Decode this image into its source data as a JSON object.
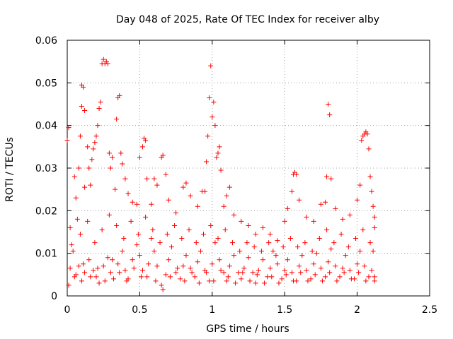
{
  "chart_data": {
    "type": "scatter",
    "title": "Day 048 of 2025, Rate Of TEC Index for receiver alby",
    "xlabel": "GPS time / hours",
    "ylabel": "ROTI / TECUs",
    "xlim": [
      0,
      2.5
    ],
    "ylim": [
      0,
      0.06
    ],
    "xticks": [
      0,
      0.5,
      1,
      1.5,
      2,
      2.5
    ],
    "xtick_labels": [
      "0",
      "0.5",
      "1",
      "1.5",
      "2",
      "2.5"
    ],
    "yticks": [
      0,
      0.01,
      0.02,
      0.03,
      0.04,
      0.05,
      0.06
    ],
    "ytick_labels": [
      "0",
      "0.01",
      "0.02",
      "0.03",
      "0.04",
      "0.05",
      "0.06"
    ],
    "grid": true,
    "marker": "+",
    "color": "#ff0000",
    "series": [
      {
        "name": "ROTI",
        "points": [
          [
            0.0,
            0.0365
          ],
          [
            0.01,
            0.0395
          ],
          [
            0.02,
            0.016
          ],
          [
            0.03,
            0.012
          ],
          [
            0.05,
            0.028
          ],
          [
            0.06,
            0.023
          ],
          [
            0.07,
            0.018
          ],
          [
            0.08,
            0.03
          ],
          [
            0.09,
            0.0375
          ],
          [
            0.1,
            0.0445
          ],
          [
            0.1,
            0.0495
          ],
          [
            0.11,
            0.049
          ],
          [
            0.12,
            0.0435
          ],
          [
            0.12,
            0.0255
          ],
          [
            0.14,
            0.035
          ],
          [
            0.15,
            0.03
          ],
          [
            0.16,
            0.026
          ],
          [
            0.17,
            0.032
          ],
          [
            0.18,
            0.0345
          ],
          [
            0.19,
            0.036
          ],
          [
            0.2,
            0.0375
          ],
          [
            0.21,
            0.04
          ],
          [
            0.22,
            0.044
          ],
          [
            0.23,
            0.0455
          ],
          [
            0.24,
            0.0545
          ],
          [
            0.25,
            0.0555
          ],
          [
            0.26,
            0.0545
          ],
          [
            0.27,
            0.055
          ],
          [
            0.28,
            0.0545
          ],
          [
            0.29,
            0.0335
          ],
          [
            0.3,
            0.03
          ],
          [
            0.31,
            0.0325
          ],
          [
            0.33,
            0.025
          ],
          [
            0.34,
            0.0415
          ],
          [
            0.35,
            0.0465
          ],
          [
            0.36,
            0.047
          ],
          [
            0.37,
            0.0335
          ],
          [
            0.38,
            0.031
          ],
          [
            0.4,
            0.0275
          ],
          [
            0.42,
            0.024
          ],
          [
            0.45,
            0.022
          ],
          [
            0.48,
            0.0215
          ],
          [
            0.5,
            0.0325
          ],
          [
            0.52,
            0.035
          ],
          [
            0.53,
            0.037
          ],
          [
            0.54,
            0.0365
          ],
          [
            0.55,
            0.0275
          ],
          [
            0.58,
            0.0215
          ],
          [
            0.6,
            0.0275
          ],
          [
            0.62,
            0.026
          ],
          [
            0.65,
            0.0325
          ],
          [
            0.66,
            0.033
          ],
          [
            0.68,
            0.0285
          ],
          [
            0.7,
            0.0225
          ],
          [
            0.75,
            0.0195
          ],
          [
            0.8,
            0.0255
          ],
          [
            0.82,
            0.0265
          ],
          [
            0.85,
            0.0235
          ],
          [
            0.9,
            0.021
          ],
          [
            0.93,
            0.0245
          ],
          [
            0.95,
            0.0245
          ],
          [
            0.96,
            0.0315
          ],
          [
            0.97,
            0.0375
          ],
          [
            0.98,
            0.0465
          ],
          [
            0.99,
            0.054
          ],
          [
            1.0,
            0.042
          ],
          [
            1.01,
            0.0455
          ],
          [
            1.02,
            0.04
          ],
          [
            1.03,
            0.0325
          ],
          [
            1.04,
            0.0335
          ],
          [
            1.05,
            0.035
          ],
          [
            1.06,
            0.0295
          ],
          [
            1.08,
            0.021
          ],
          [
            1.1,
            0.0235
          ],
          [
            1.12,
            0.0255
          ],
          [
            1.15,
            0.019
          ],
          [
            1.2,
            0.0175
          ],
          [
            1.25,
            0.0165
          ],
          [
            1.3,
            0.0145
          ],
          [
            1.35,
            0.016
          ],
          [
            1.4,
            0.0145
          ],
          [
            1.45,
            0.013
          ],
          [
            1.5,
            0.0175
          ],
          [
            1.52,
            0.0205
          ],
          [
            1.55,
            0.0245
          ],
          [
            1.56,
            0.0285
          ],
          [
            1.57,
            0.029
          ],
          [
            1.58,
            0.0285
          ],
          [
            1.6,
            0.0225
          ],
          [
            1.65,
            0.0185
          ],
          [
            1.7,
            0.0175
          ],
          [
            1.75,
            0.0215
          ],
          [
            1.78,
            0.022
          ],
          [
            1.79,
            0.028
          ],
          [
            1.8,
            0.045
          ],
          [
            1.81,
            0.0425
          ],
          [
            1.82,
            0.0275
          ],
          [
            1.85,
            0.0205
          ],
          [
            1.9,
            0.018
          ],
          [
            1.95,
            0.019
          ],
          [
            2.0,
            0.0225
          ],
          [
            2.02,
            0.026
          ],
          [
            2.03,
            0.0365
          ],
          [
            2.04,
            0.0375
          ],
          [
            2.05,
            0.038
          ],
          [
            2.06,
            0.0385
          ],
          [
            2.07,
            0.038
          ],
          [
            2.08,
            0.0345
          ],
          [
            2.09,
            0.028
          ],
          [
            2.1,
            0.0245
          ],
          [
            2.11,
            0.021
          ],
          [
            2.12,
            0.0185
          ],
          [
            2.12,
            0.016
          ],
          [
            0.02,
            0.0065
          ],
          [
            0.05,
            0.0045
          ],
          [
            0.08,
            0.007
          ],
          [
            0.1,
            0.0035
          ],
          [
            0.12,
            0.0055
          ],
          [
            0.15,
            0.0085
          ],
          [
            0.18,
            0.006
          ],
          [
            0.2,
            0.0045
          ],
          [
            0.22,
            0.003
          ],
          [
            0.25,
            0.007
          ],
          [
            0.28,
            0.009
          ],
          [
            0.3,
            0.0055
          ],
          [
            0.32,
            0.004
          ],
          [
            0.35,
            0.0075
          ],
          [
            0.38,
            0.0105
          ],
          [
            0.4,
            0.006
          ],
          [
            0.42,
            0.004
          ],
          [
            0.45,
            0.0085
          ],
          [
            0.48,
            0.012
          ],
          [
            0.5,
            0.0095
          ],
          [
            0.52,
            0.006
          ],
          [
            0.55,
            0.0045
          ],
          [
            0.58,
            0.0135
          ],
          [
            0.6,
            0.0105
          ],
          [
            0.62,
            0.007
          ],
          [
            0.65,
            0.0025
          ],
          [
            0.68,
            0.005
          ],
          [
            0.7,
            0.0085
          ],
          [
            0.72,
            0.0115
          ],
          [
            0.75,
            0.0055
          ],
          [
            0.78,
            0.004
          ],
          [
            0.8,
            0.007
          ],
          [
            0.82,
            0.0095
          ],
          [
            0.85,
            0.0065
          ],
          [
            0.88,
            0.0045
          ],
          [
            0.9,
            0.008
          ],
          [
            0.92,
            0.0105
          ],
          [
            0.95,
            0.006
          ],
          [
            0.98,
            0.0035
          ],
          [
            1.0,
            0.0075
          ],
          [
            1.02,
            0.0125
          ],
          [
            1.05,
            0.0085
          ],
          [
            1.08,
            0.0055
          ],
          [
            1.1,
            0.0035
          ],
          [
            1.12,
            0.007
          ],
          [
            1.15,
            0.0095
          ],
          [
            1.18,
            0.0055
          ],
          [
            1.2,
            0.004
          ],
          [
            1.22,
            0.0065
          ],
          [
            1.25,
            0.009
          ],
          [
            1.28,
            0.0055
          ],
          [
            1.3,
            0.003
          ],
          [
            1.32,
            0.006
          ],
          [
            1.35,
            0.0085
          ],
          [
            1.38,
            0.0045
          ],
          [
            1.4,
            0.0065
          ],
          [
            1.42,
            0.0105
          ],
          [
            1.45,
            0.0075
          ],
          [
            1.48,
            0.004
          ],
          [
            1.5,
            0.006
          ],
          [
            1.52,
            0.0085
          ],
          [
            1.55,
            0.0055
          ],
          [
            1.58,
            0.0035
          ],
          [
            1.6,
            0.007
          ],
          [
            1.62,
            0.0095
          ],
          [
            1.65,
            0.006
          ],
          [
            1.68,
            0.004
          ],
          [
            1.7,
            0.0075
          ],
          [
            1.72,
            0.01
          ],
          [
            1.75,
            0.0065
          ],
          [
            1.78,
            0.0045
          ],
          [
            1.8,
            0.008
          ],
          [
            1.82,
            0.011
          ],
          [
            1.85,
            0.007
          ],
          [
            1.88,
            0.0045
          ],
          [
            1.9,
            0.0065
          ],
          [
            1.92,
            0.0095
          ],
          [
            1.95,
            0.006
          ],
          [
            1.98,
            0.004
          ],
          [
            2.0,
            0.0075
          ],
          [
            2.02,
            0.0105
          ],
          [
            2.05,
            0.007
          ],
          [
            2.08,
            0.0045
          ],
          [
            2.1,
            0.006
          ],
          [
            2.12,
            0.0035
          ],
          [
            0.04,
            0.0105
          ],
          [
            0.09,
            0.0145
          ],
          [
            0.14,
            0.0175
          ],
          [
            0.19,
            0.0125
          ],
          [
            0.24,
            0.0155
          ],
          [
            0.29,
            0.019
          ],
          [
            0.34,
            0.0165
          ],
          [
            0.39,
            0.0135
          ],
          [
            0.44,
            0.0175
          ],
          [
            0.49,
            0.0145
          ],
          [
            0.54,
            0.0185
          ],
          [
            0.59,
            0.0155
          ],
          [
            0.64,
            0.0125
          ],
          [
            0.69,
            0.0145
          ],
          [
            0.74,
            0.0165
          ],
          [
            0.79,
            0.0135
          ],
          [
            0.84,
            0.0155
          ],
          [
            0.89,
            0.0125
          ],
          [
            0.94,
            0.0145
          ],
          [
            0.99,
            0.0165
          ],
          [
            1.04,
            0.0135
          ],
          [
            1.09,
            0.0155
          ],
          [
            1.14,
            0.0125
          ],
          [
            1.19,
            0.0105
          ],
          [
            1.24,
            0.0125
          ],
          [
            1.29,
            0.0115
          ],
          [
            1.34,
            0.0105
          ],
          [
            1.39,
            0.0125
          ],
          [
            1.44,
            0.0095
          ],
          [
            1.49,
            0.0115
          ],
          [
            1.54,
            0.0135
          ],
          [
            1.59,
            0.0115
          ],
          [
            1.64,
            0.0125
          ],
          [
            1.69,
            0.0105
          ],
          [
            1.74,
            0.0135
          ],
          [
            1.79,
            0.0155
          ],
          [
            1.84,
            0.0125
          ],
          [
            1.89,
            0.0145
          ],
          [
            1.94,
            0.0115
          ],
          [
            1.99,
            0.0135
          ],
          [
            2.04,
            0.0155
          ],
          [
            2.09,
            0.0125
          ],
          [
            2.11,
            0.0105
          ],
          [
            0.01,
            0.0025
          ],
          [
            0.06,
            0.005
          ],
          [
            0.11,
            0.0075
          ],
          [
            0.16,
            0.0045
          ],
          [
            0.21,
            0.0065
          ],
          [
            0.26,
            0.0035
          ],
          [
            0.31,
            0.0085
          ],
          [
            0.36,
            0.0055
          ],
          [
            0.41,
            0.0035
          ],
          [
            0.46,
            0.0065
          ],
          [
            0.51,
            0.0045
          ],
          [
            0.56,
            0.0075
          ],
          [
            0.61,
            0.0035
          ],
          [
            0.66,
            0.0015
          ],
          [
            0.71,
            0.0045
          ],
          [
            0.76,
            0.0065
          ],
          [
            0.81,
            0.0035
          ],
          [
            0.86,
            0.0055
          ],
          [
            0.91,
            0.003
          ],
          [
            0.96,
            0.0055
          ],
          [
            1.01,
            0.0035
          ],
          [
            1.06,
            0.006
          ],
          [
            1.11,
            0.0045
          ],
          [
            1.16,
            0.003
          ],
          [
            1.21,
            0.0055
          ],
          [
            1.26,
            0.0035
          ],
          [
            1.31,
            0.005
          ],
          [
            1.36,
            0.003
          ],
          [
            1.41,
            0.0045
          ],
          [
            1.46,
            0.003
          ],
          [
            1.51,
            0.005
          ],
          [
            1.56,
            0.0035
          ],
          [
            1.61,
            0.0055
          ],
          [
            1.66,
            0.0035
          ],
          [
            1.71,
            0.005
          ],
          [
            1.76,
            0.0035
          ],
          [
            1.81,
            0.0055
          ],
          [
            1.86,
            0.0035
          ],
          [
            1.91,
            0.0055
          ],
          [
            1.96,
            0.004
          ],
          [
            2.01,
            0.0055
          ],
          [
            2.06,
            0.0035
          ],
          [
            2.12,
            0.0045
          ]
        ]
      }
    ]
  }
}
